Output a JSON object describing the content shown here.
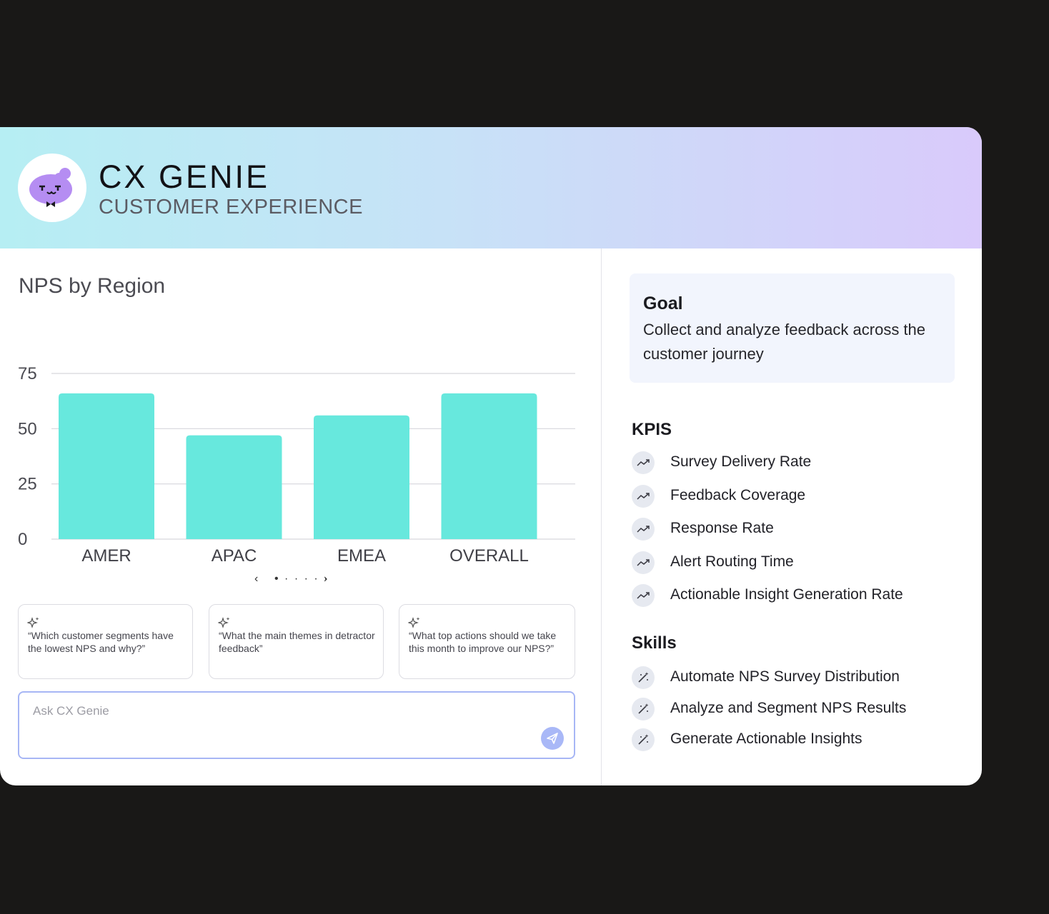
{
  "header": {
    "title": "CX GENIE",
    "subtitle": "CUSTOMER EXPERIENCE"
  },
  "chart_data": {
    "type": "bar",
    "title": "NPS by Region",
    "categories": [
      "AMER",
      "APAC",
      "EMEA",
      "OVERALL"
    ],
    "values": [
      66,
      47,
      56,
      66
    ],
    "ylim": [
      0,
      75
    ],
    "yticks": [
      0,
      25,
      50,
      75
    ],
    "grid": true,
    "bar_color": "#67e8dd",
    "xlabel": "",
    "ylabel": ""
  },
  "pager": {
    "prev": "‹",
    "dots": "• · · · · ·",
    "next": "›"
  },
  "suggestions": [
    {
      "text": "“Which customer segments have the lowest NPS and why?”"
    },
    {
      "text": "“What the main themes in detractor feedback”"
    },
    {
      "text": "“What top actions should we take this month to improve our NPS?”"
    }
  ],
  "ask": {
    "placeholder": "Ask CX Genie"
  },
  "goal": {
    "heading": "Goal",
    "text": "Collect and analyze feedback across the customer journey"
  },
  "kpis": {
    "heading": "KPIS",
    "icon": "trend-up-icon",
    "items": [
      "Survey Delivery Rate",
      "Feedback Coverage",
      "Response Rate",
      "Alert Routing Time",
      "Actionable Insight Generation Rate"
    ]
  },
  "skills": {
    "heading": "Skills",
    "icon": "magic-wand-icon",
    "items": [
      "Automate NPS Survey Distribution",
      "Analyze and Segment NPS Results",
      "Generate Actionable Insights"
    ]
  }
}
